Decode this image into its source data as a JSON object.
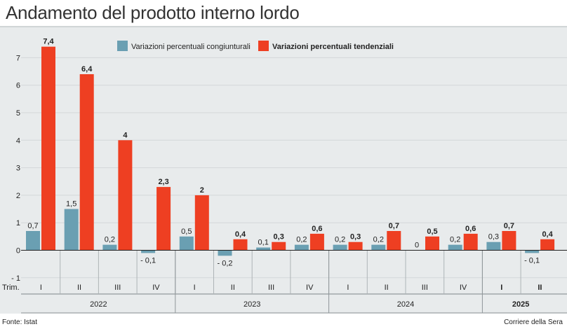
{
  "title": "Andamento del prodotto interno lordo",
  "source": "Fonte: Istat",
  "credit": "Corriere della Sera",
  "colors": {
    "background": "#e8ebec",
    "congiunturale": "#6a9fb2",
    "tendenziale": "#ee3f22",
    "grid": "#d3d7d9",
    "text": "#222222"
  },
  "chart_data": {
    "type": "bar",
    "title": "Andamento del prodotto interno lordo",
    "xlabel": "Trim.",
    "ylabel": "",
    "ylim": [
      -1,
      8
    ],
    "yticks": [
      7,
      6,
      5,
      4,
      3,
      2,
      1,
      0,
      -1
    ],
    "ytick_labels": [
      "7",
      "6",
      "5",
      "4",
      "3",
      "2",
      "1",
      "0",
      "- 1"
    ],
    "x_axis_label": "Trim.",
    "legend_position": "top-center",
    "categories": [
      "I",
      "II",
      "III",
      "IV",
      "I",
      "II",
      "III",
      "IV",
      "I",
      "II",
      "III",
      "IV",
      "I",
      "II"
    ],
    "years": [
      {
        "label": "2022",
        "quarters": 4,
        "bold": false
      },
      {
        "label": "2023",
        "quarters": 4,
        "bold": false
      },
      {
        "label": "2024",
        "quarters": 4,
        "bold": false
      },
      {
        "label": "2025",
        "quarters": 2,
        "bold": true
      }
    ],
    "series": [
      {
        "name": "Variazioni percentuali congiunturali",
        "color": "#6a9fb2",
        "values": [
          0.7,
          1.5,
          0.2,
          -0.1,
          0.5,
          -0.2,
          0.1,
          0.2,
          0.2,
          0.2,
          0,
          0.2,
          0.3,
          -0.1
        ],
        "labels": [
          "0,7",
          "1,5",
          "0,2",
          "- 0,1",
          "0,5",
          "- 0,2",
          "0,1",
          "0,2",
          "0,2",
          "0,2",
          "0",
          "0,2",
          "0,3",
          "- 0,1"
        ]
      },
      {
        "name": "Variazioni percentuali tendenziali",
        "color": "#ee3f22",
        "values": [
          7.4,
          6.4,
          4,
          2.3,
          2,
          0.4,
          0.3,
          0.6,
          0.3,
          0.7,
          0.5,
          0.6,
          0.7,
          0.4
        ],
        "labels": [
          "7,4",
          "6,4",
          "4",
          "2,3",
          "2",
          "0,4",
          "0,3",
          "0,6",
          "0,3",
          "0,7",
          "0,5",
          "0,6",
          "0,7",
          "0,4"
        ]
      }
    ]
  }
}
